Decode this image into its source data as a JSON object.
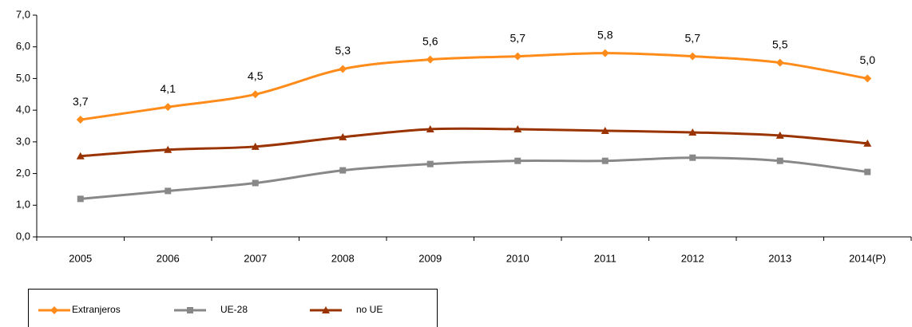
{
  "chart_data": {
    "type": "line",
    "categories": [
      "2005",
      "2006",
      "2007",
      "2008",
      "2009",
      "2010",
      "2011",
      "2012",
      "2013",
      "2014(P)"
    ],
    "series": [
      {
        "name": "Extranjeros",
        "color": "#ff8c1a",
        "marker": "diamond",
        "values": [
          3.7,
          4.1,
          4.5,
          5.3,
          5.6,
          5.7,
          5.8,
          5.7,
          5.5,
          5.0
        ],
        "value_labels": [
          "3,7",
          "4,1",
          "4,5",
          "5,3",
          "5,6",
          "5,7",
          "5,8",
          "5,7",
          "5,5",
          "5,0"
        ]
      },
      {
        "name": "UE-28",
        "color": "#888888",
        "marker": "square",
        "values": [
          1.2,
          1.45,
          1.7,
          2.1,
          2.3,
          2.4,
          2.4,
          2.5,
          2.4,
          2.05
        ]
      },
      {
        "name": "no UE",
        "color": "#993300",
        "marker": "triangle",
        "values": [
          2.55,
          2.75,
          2.85,
          3.15,
          3.4,
          3.4,
          3.35,
          3.3,
          3.2,
          2.95
        ]
      }
    ],
    "ylim": [
      0,
      7
    ],
    "yticks": [
      {
        "value": 0,
        "label": "0,0"
      },
      {
        "value": 1,
        "label": "1,0"
      },
      {
        "value": 2,
        "label": "2,0"
      },
      {
        "value": 3,
        "label": "3,0"
      },
      {
        "value": 4,
        "label": "4,0"
      },
      {
        "value": 5,
        "label": "5,0"
      },
      {
        "value": 6,
        "label": "6,0"
      },
      {
        "value": 7,
        "label": "7,0"
      }
    ],
    "grid": false,
    "legend": "bottom-left"
  }
}
